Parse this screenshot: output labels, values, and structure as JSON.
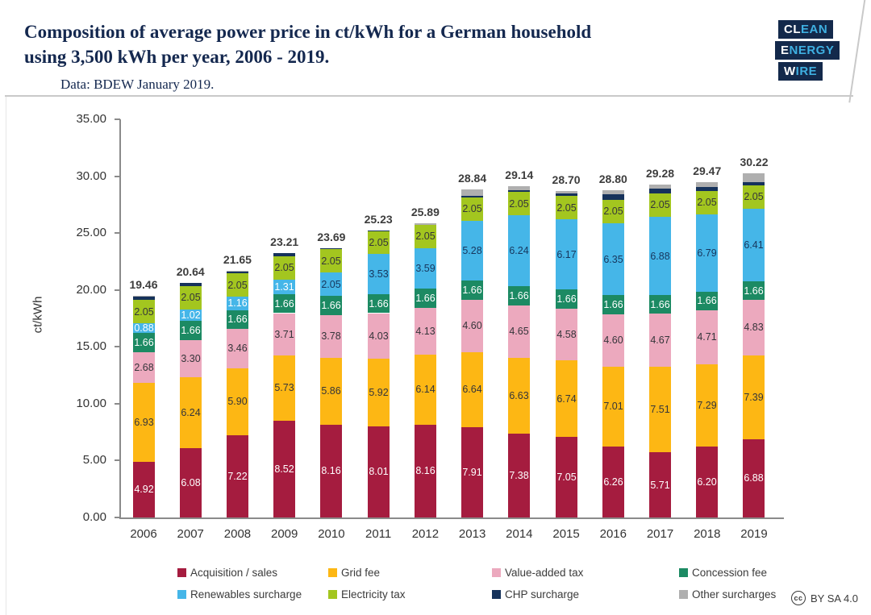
{
  "header": {
    "title_line1": "Composition of average power price in ct/kWh for a German household",
    "title_line2": "using 3,500 kWh per year, 2006 - 2019.",
    "subtitle": "Data: BDEW January 2019.",
    "logo": {
      "lines": [
        {
          "white": "CL",
          "blue": "EAN"
        },
        {
          "white": "E",
          "blue": "NERGY"
        },
        {
          "white": "W",
          "blue": "IRE"
        }
      ],
      "box_color": "#13294B",
      "accent_color": "#3FB0E2"
    }
  },
  "chart_data": {
    "type": "bar",
    "stacked": true,
    "title": "Composition of average power price in ct/kWh for a German household using 3,500 kWh per year, 2006 - 2019.",
    "source": "Data: BDEW January 2019.",
    "ylabel": "ct/kWh",
    "ylim": [
      0,
      35
    ],
    "ytick_step": 5,
    "ytick_labels": [
      "0.00",
      "5.00",
      "10.00",
      "15.00",
      "20.00",
      "25.00",
      "30.00",
      "35.00"
    ],
    "grid": false,
    "legend_position": "bottom",
    "categories": [
      "2006",
      "2007",
      "2008",
      "2009",
      "2010",
      "2011",
      "2012",
      "2013",
      "2014",
      "2015",
      "2016",
      "2017",
      "2018",
      "2019"
    ],
    "totals": [
      19.46,
      20.64,
      21.65,
      23.21,
      23.69,
      25.23,
      25.89,
      28.84,
      29.14,
      28.7,
      28.8,
      29.28,
      29.47,
      30.22
    ],
    "series": [
      {
        "name": "Acquisition / sales",
        "color": "#A51C3F",
        "label_color": "#FFFFFF",
        "labeled": true,
        "values": [
          4.92,
          6.08,
          7.22,
          8.52,
          8.16,
          8.01,
          8.16,
          7.91,
          7.38,
          7.05,
          6.26,
          5.71,
          6.2,
          6.88
        ]
      },
      {
        "name": "Grid fee",
        "color": "#FDB714",
        "label_color": "#35353A",
        "labeled": true,
        "values": [
          6.93,
          6.24,
          5.9,
          5.73,
          5.86,
          5.92,
          6.14,
          6.64,
          6.63,
          6.74,
          7.01,
          7.51,
          7.29,
          7.39
        ]
      },
      {
        "name": "Value-added tax",
        "color": "#ECA9BE",
        "label_color": "#35353A",
        "labeled": true,
        "values": [
          2.68,
          3.3,
          3.46,
          3.71,
          3.78,
          4.03,
          4.13,
          4.6,
          4.65,
          4.58,
          4.6,
          4.67,
          4.71,
          4.83
        ]
      },
      {
        "name": "Concession fee",
        "color": "#1C8A63",
        "label_color": "#FFFFFF",
        "labeled": true,
        "values": [
          1.66,
          1.66,
          1.66,
          1.66,
          1.66,
          1.66,
          1.66,
          1.66,
          1.66,
          1.66,
          1.66,
          1.66,
          1.66,
          1.66
        ]
      },
      {
        "name": "Renewables surcharge",
        "color": "#45B6E8",
        "label_color": "auto",
        "labeled": true,
        "values": [
          0.88,
          1.02,
          1.16,
          1.31,
          2.05,
          3.53,
          3.59,
          5.28,
          6.24,
          6.17,
          6.35,
          6.88,
          6.79,
          6.41
        ]
      },
      {
        "name": "Electricity tax",
        "color": "#A3C61F",
        "label_color": "#35353A",
        "labeled": true,
        "values": [
          2.05,
          2.05,
          2.05,
          2.05,
          2.05,
          2.05,
          2.05,
          2.05,
          2.05,
          2.05,
          2.05,
          2.05,
          2.05,
          2.05
        ]
      },
      {
        "name": "CHP surcharge",
        "color": "#16325B",
        "label_color": "none",
        "labeled": false,
        "values": [
          0.31,
          0.29,
          0.19,
          0.23,
          0.13,
          0.03,
          0.0,
          0.13,
          0.18,
          0.25,
          0.45,
          0.44,
          0.35,
          0.28
        ]
      },
      {
        "name": "Other surcharges",
        "color": "#AFAFAF",
        "label_color": "none",
        "labeled": false,
        "values": [
          0.03,
          0.0,
          0.01,
          0.0,
          0.0,
          0.0,
          0.16,
          0.57,
          0.35,
          0.2,
          0.42,
          0.36,
          0.42,
          0.72
        ]
      }
    ]
  },
  "footer": {
    "cc_label": "cc",
    "license": "BY SA 4.0"
  }
}
